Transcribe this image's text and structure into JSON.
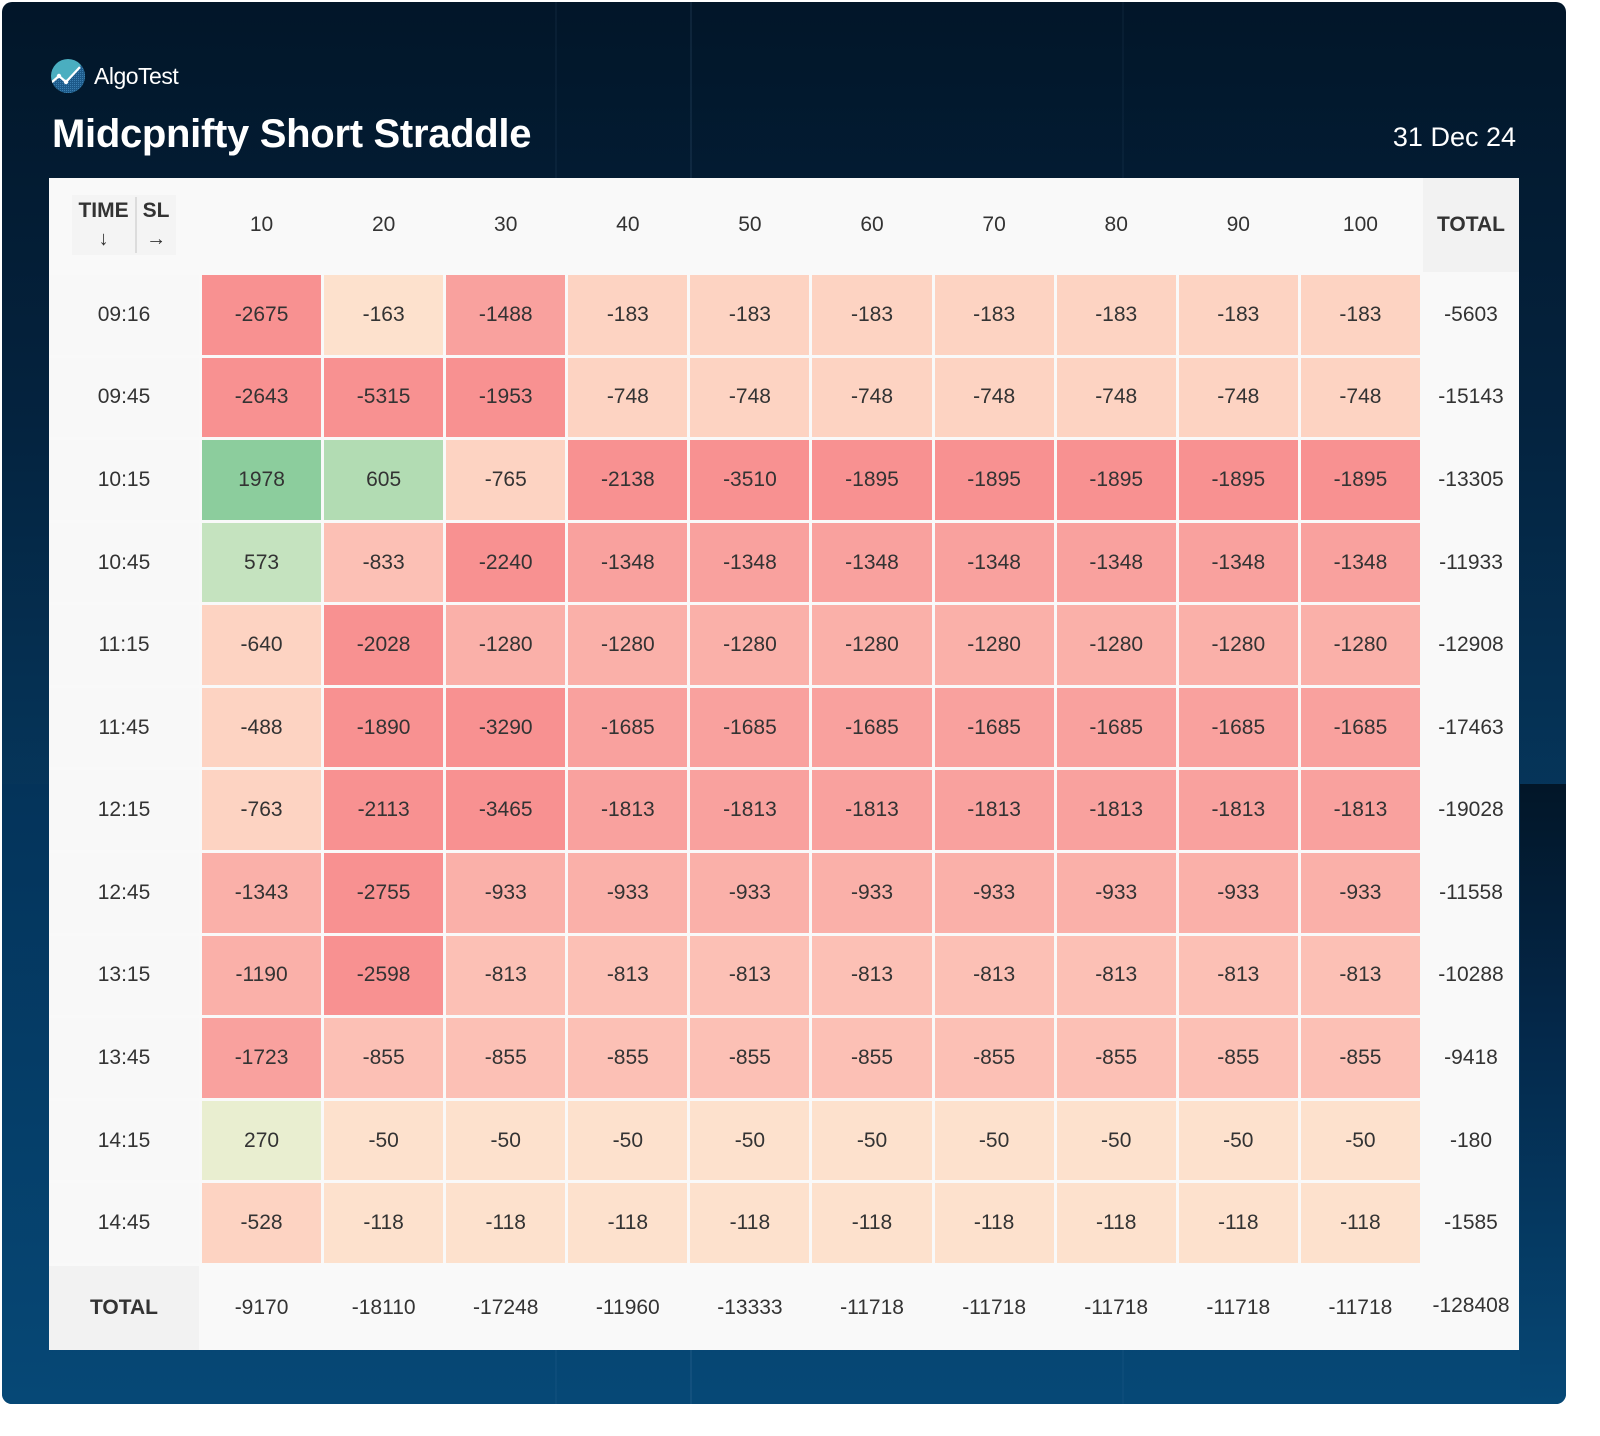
{
  "brand": {
    "name": "AlgoTest",
    "logo_icon": "algotest-logo-icon"
  },
  "header": {
    "title": "Midcpnifty Short Straddle",
    "date": "31 Dec 24"
  },
  "colors": {
    "background_top": "#021629",
    "background_bottom": "#064876",
    "strong_green": "#8ccd9d",
    "light_green": "#b2dcb3",
    "pale_green": "#c5e3bf",
    "yellow_green": "#e9eed0",
    "peach": "#fde1cd",
    "light_salmon": "#fdd3c2",
    "salmon": "#fcc0b5",
    "light_red": "#fab0a9",
    "medium_red": "#f9a19e",
    "strong_red": "#f89191"
  },
  "chart_data": {
    "type": "heatmap",
    "title": "Midcpnifty Short Straddle",
    "date": "31 Dec 24",
    "corner": {
      "row_axis_label": "TIME",
      "row_axis_arrow": "↓",
      "col_axis_label": "SL",
      "col_axis_arrow": "→"
    },
    "xlabel": "SL",
    "ylabel": "TIME",
    "columns": [
      "10",
      "20",
      "30",
      "40",
      "50",
      "60",
      "70",
      "80",
      "90",
      "100"
    ],
    "total_label": "TOTAL",
    "rows": [
      {
        "time": "09:16",
        "values": [
          -2675,
          -163,
          -1488,
          -183,
          -183,
          -183,
          -183,
          -183,
          -183,
          -183
        ],
        "total": -5603
      },
      {
        "time": "09:45",
        "values": [
          -2643,
          -5315,
          -1953,
          -748,
          -748,
          -748,
          -748,
          -748,
          -748,
          -748
        ],
        "total": -15143
      },
      {
        "time": "10:15",
        "values": [
          1978,
          605,
          -765,
          -2138,
          -3510,
          -1895,
          -1895,
          -1895,
          -1895,
          -1895
        ],
        "total": -13305
      },
      {
        "time": "10:45",
        "values": [
          573,
          -833,
          -2240,
          -1348,
          -1348,
          -1348,
          -1348,
          -1348,
          -1348,
          -1348
        ],
        "total": -11933
      },
      {
        "time": "11:15",
        "values": [
          -640,
          -2028,
          -1280,
          -1280,
          -1280,
          -1280,
          -1280,
          -1280,
          -1280,
          -1280
        ],
        "total": -12908
      },
      {
        "time": "11:45",
        "values": [
          -488,
          -1890,
          -3290,
          -1685,
          -1685,
          -1685,
          -1685,
          -1685,
          -1685,
          -1685
        ],
        "total": -17463
      },
      {
        "time": "12:15",
        "values": [
          -763,
          -2113,
          -3465,
          -1813,
          -1813,
          -1813,
          -1813,
          -1813,
          -1813,
          -1813
        ],
        "total": -19028
      },
      {
        "time": "12:45",
        "values": [
          -1343,
          -2755,
          -933,
          -933,
          -933,
          -933,
          -933,
          -933,
          -933,
          -933
        ],
        "total": -11558
      },
      {
        "time": "13:15",
        "values": [
          -1190,
          -2598,
          -813,
          -813,
          -813,
          -813,
          -813,
          -813,
          -813,
          -813
        ],
        "total": -10288
      },
      {
        "time": "13:45",
        "values": [
          -1723,
          -855,
          -855,
          -855,
          -855,
          -855,
          -855,
          -855,
          -855,
          -855
        ],
        "total": -9418
      },
      {
        "time": "14:15",
        "values": [
          270,
          -50,
          -50,
          -50,
          -50,
          -50,
          -50,
          -50,
          -50,
          -50
        ],
        "total": -180
      },
      {
        "time": "14:45",
        "values": [
          -528,
          -118,
          -118,
          -118,
          -118,
          -118,
          -118,
          -118,
          -118,
          -118
        ],
        "total": -1585
      }
    ],
    "column_totals": [
      -9170,
      -18110,
      -17248,
      -11960,
      -13333,
      -11718,
      -11718,
      -11718,
      -11718,
      -11718
    ],
    "grand_total": -128408
  }
}
